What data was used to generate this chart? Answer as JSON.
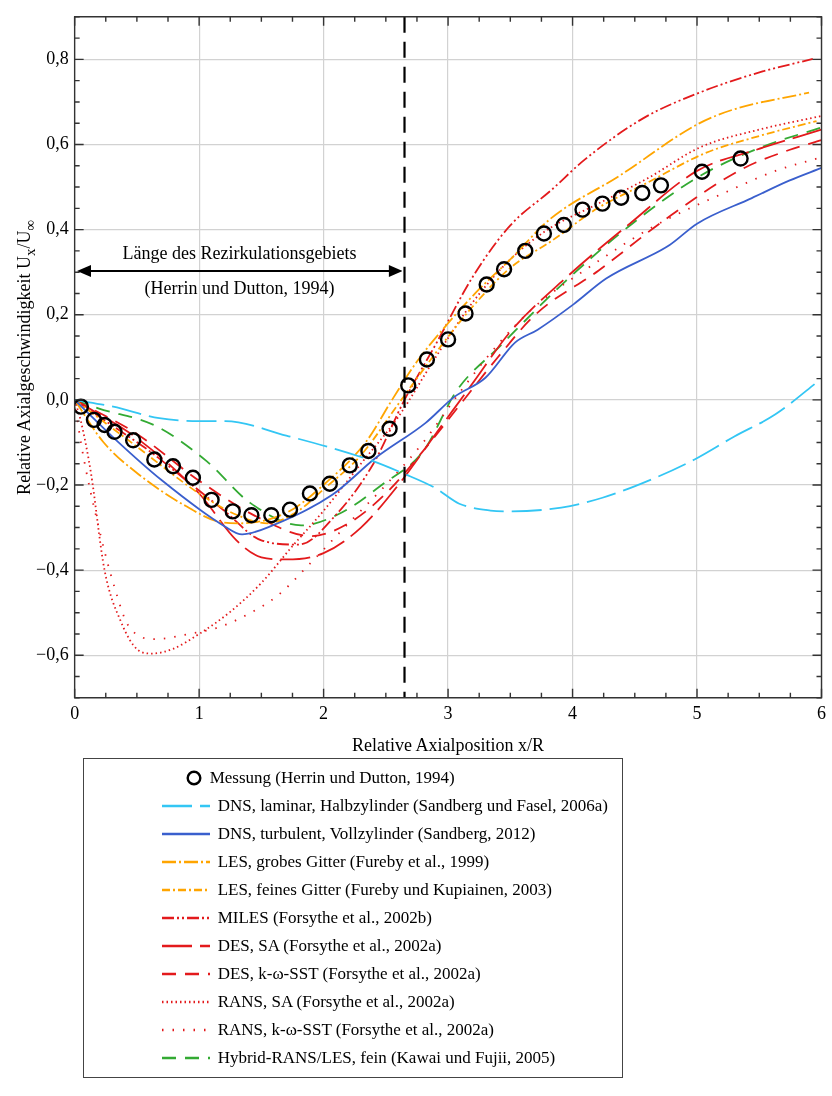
{
  "chart_data": {
    "type": "line",
    "xlabel": "Relative Axialposition x/R",
    "ylabel": "Relative Axialgeschwindigkeit U$_{x}$/U$_{∞}$",
    "xlim": [
      0,
      6
    ],
    "ylim": [
      -0.7,
      0.9
    ],
    "xticks": [
      0,
      {
        "value": 0.25,
        "label": null
      },
      {
        "value": 0.5,
        "label": null
      },
      {
        "value": 0.75,
        "label": null
      },
      1,
      {
        "value": 1.25,
        "label": null
      },
      {
        "value": 1.5,
        "label": null
      },
      {
        "value": 1.75,
        "label": null
      },
      2,
      {
        "value": 2.25,
        "label": null
      },
      {
        "value": 2.5,
        "label": null
      },
      {
        "value": 2.75,
        "label": null
      },
      3,
      {
        "value": 3.25,
        "label": null
      },
      {
        "value": 3.5,
        "label": null
      },
      {
        "value": 3.75,
        "label": null
      },
      4,
      {
        "value": 4.25,
        "label": null
      },
      {
        "value": 4.5,
        "label": null
      },
      {
        "value": 4.75,
        "label": null
      },
      5,
      {
        "value": 5.25,
        "label": null
      },
      {
        "value": 5.5,
        "label": null
      },
      {
        "value": 5.75,
        "label": null
      },
      6
    ],
    "yticks": [
      {
        "value": -0.7,
        "label": null
      },
      {
        "value": -0.65,
        "label": null
      },
      {
        "value": -0.6,
        "label": "−0,6"
      },
      {
        "value": -0.55,
        "label": null
      },
      {
        "value": -0.5,
        "label": null
      },
      {
        "value": -0.45,
        "label": null
      },
      {
        "value": -0.4,
        "label": "−0,4"
      },
      {
        "value": -0.35,
        "label": null
      },
      {
        "value": -0.3,
        "label": null
      },
      {
        "value": -0.25,
        "label": null
      },
      {
        "value": -0.2,
        "label": "−0,2"
      },
      {
        "value": -0.15,
        "label": null
      },
      {
        "value": -0.1,
        "label": null
      },
      {
        "value": -0.05,
        "label": null
      },
      {
        "value": 0,
        "label": "0,0"
      },
      {
        "value": 0.05,
        "label": null
      },
      {
        "value": 0.1,
        "label": null
      },
      {
        "value": 0.15,
        "label": null
      },
      {
        "value": 0.2,
        "label": "0,2"
      },
      {
        "value": 0.25,
        "label": null
      },
      {
        "value": 0.3,
        "label": null
      },
      {
        "value": 0.35,
        "label": null
      },
      {
        "value": 0.4,
        "label": "0,4"
      },
      {
        "value": 0.45,
        "label": null
      },
      {
        "value": 0.5,
        "label": null
      },
      {
        "value": 0.55,
        "label": null
      },
      {
        "value": 0.6,
        "label": "0,6"
      },
      {
        "value": 0.65,
        "label": null
      },
      {
        "value": 0.7,
        "label": null
      },
      {
        "value": 0.75,
        "label": null
      },
      {
        "value": 0.8,
        "label": "0,8"
      },
      {
        "value": 0.85,
        "label": null
      },
      {
        "value": 0.9,
        "label": null
      }
    ],
    "grid": true,
    "legend": "bottom",
    "ref_lines": [
      {
        "axis": "x",
        "value": 2.65,
        "label": null,
        "color": "#000000",
        "line_style": "dashed"
      }
    ],
    "annotations": [
      "Länge des Rezirkulationsgebiets",
      "(Herrin und Dutton, 1994)"
    ],
    "series": [
      {
        "name": "Messung (Herrin und Dutton, 1994)",
        "type": "scatter",
        "marker": "circle",
        "color": "#000000",
        "x": [
          0.05,
          0.155,
          0.24,
          0.32,
          0.47,
          0.64,
          0.79,
          0.95,
          1.1,
          1.27,
          1.42,
          1.58,
          1.73,
          1.89,
          2.05,
          2.21,
          2.36,
          2.53,
          2.68,
          2.83,
          3.0,
          3.14,
          3.31,
          3.45,
          3.62,
          3.77,
          3.93,
          4.08,
          4.24,
          4.39,
          4.56,
          4.71,
          5.04,
          5.35
        ],
        "values": [
          -0.016,
          -0.047,
          -0.059,
          -0.075,
          -0.095,
          -0.14,
          -0.156,
          -0.183,
          -0.235,
          -0.262,
          -0.271,
          -0.271,
          -0.258,
          -0.22,
          -0.197,
          -0.154,
          -0.12,
          -0.068,
          0.034,
          0.095,
          0.142,
          0.203,
          0.271,
          0.307,
          0.35,
          0.391,
          0.411,
          0.447,
          0.461,
          0.475,
          0.486,
          0.504,
          0.536,
          0.567
        ]
      },
      {
        "name": "DNS, laminar, Halbzylinder (Sandberg und Fasel, 2006a)",
        "color": "#33c6f4",
        "line_style": "long-dashed",
        "x": [
          0,
          0.31,
          0.68,
          1.0,
          1.21,
          1.7,
          2.36,
          2.65,
          2.89,
          3.09,
          3.34,
          3.5,
          3.91,
          4.24,
          4.65,
          4.98,
          5.3,
          5.63,
          6.0
        ],
        "values": [
          0,
          -0.016,
          -0.043,
          -0.05,
          -0.05,
          -0.084,
          -0.14,
          -0.174,
          -0.206,
          -0.244,
          -0.26,
          -0.262,
          -0.253,
          -0.23,
          -0.185,
          -0.14,
          -0.086,
          -0.034,
          0.05
        ]
      },
      {
        "name": "DNS, turbulent, Vollzylinder (Sandberg, 2012)",
        "color": "#3a5fcd",
        "line_style": "solid",
        "x": [
          0,
          0.32,
          0.7,
          1.21,
          1.345,
          1.59,
          2.07,
          2.42,
          2.82,
          3.05,
          3.3,
          3.54,
          3.72,
          4.01,
          4.27,
          4.78,
          5.0,
          5.44,
          5.74,
          6.0
        ],
        "values": [
          0,
          -0.091,
          -0.189,
          -0.298,
          -0.316,
          -0.295,
          -0.223,
          -0.136,
          -0.054,
          0.007,
          0.052,
          0.135,
          0.165,
          0.225,
          0.285,
          0.364,
          0.414,
          0.474,
          0.515,
          0.545
        ]
      },
      {
        "name": "LES, grobes Gitter (Fureby et al., 1999)",
        "color": "#ffa500",
        "line_style": "dash-dot",
        "x": [
          0,
          0.23,
          0.51,
          0.89,
          1.17,
          1.33,
          1.71,
          2.01,
          2.34,
          2.55,
          2.75,
          3.0,
          3.25,
          3.5,
          3.82,
          4.38,
          5.0,
          5.28,
          5.9
        ],
        "values": [
          0,
          -0.099,
          -0.174,
          -0.249,
          -0.287,
          -0.29,
          -0.264,
          -0.197,
          -0.099,
          0.0,
          0.09,
          0.18,
          0.26,
          0.33,
          0.425,
          0.527,
          0.647,
          0.681,
          0.722
        ]
      },
      {
        "name": "LES, feines Gitter (Fureby und Kupiainen, 2003)",
        "color": "#ffa500",
        "line_style": "short-dash-dot",
        "x": [
          0,
          0.5,
          1.0,
          1.3,
          1.55,
          1.8,
          2.0,
          2.3,
          2.6,
          2.9,
          3.2,
          3.5,
          3.83,
          4.2,
          4.6,
          5.06,
          5.5,
          5.96
        ],
        "values": [
          0,
          -0.11,
          -0.22,
          -0.27,
          -0.29,
          -0.26,
          -0.21,
          -0.13,
          -0.01,
          0.11,
          0.22,
          0.31,
          0.373,
          0.45,
          0.51,
          0.579,
          0.62,
          0.655
        ]
      },
      {
        "name": "MILES (Forsythe et al., 2002b)",
        "color": "#e31a1c",
        "line_style": "dash-dot-dot",
        "x": [
          0,
          0.3,
          0.6,
          0.9,
          1.2,
          1.5,
          1.8,
          2.1,
          2.4,
          2.65,
          2.9,
          3.2,
          3.5,
          3.83,
          4.1,
          4.57,
          5.03,
          5.52,
          5.93
        ],
        "values": [
          0,
          -0.06,
          -0.12,
          -0.19,
          -0.26,
          -0.33,
          -0.34,
          -0.27,
          -0.15,
          0.0,
          0.13,
          0.29,
          0.41,
          0.493,
          0.565,
          0.662,
          0.723,
          0.771,
          0.801
        ]
      },
      {
        "name": "DES, SA (Forsythe et al., 2002a)",
        "color": "#e31a1c",
        "line_style": "long-dashed",
        "x": [
          0,
          0.5,
          1.0,
          1.3,
          1.5,
          1.7,
          2.0,
          2.3,
          2.6,
          2.9,
          3.2,
          3.5,
          3.94,
          4.46,
          5.0,
          5.47,
          6.0
        ],
        "values": [
          0,
          -0.09,
          -0.22,
          -0.33,
          -0.37,
          -0.375,
          -0.36,
          -0.3,
          -0.2,
          -0.08,
          0.04,
          0.16,
          0.285,
          0.414,
          0.538,
          0.587,
          0.635
        ]
      },
      {
        "name": "DES, k-ω-SST (Forsythe et al., 2002a)",
        "color": "#e31a1c",
        "line_style": "dashed",
        "x": [
          0,
          0.5,
          1.0,
          1.5,
          1.9,
          2.2,
          2.5,
          2.8,
          3.1,
          3.4,
          3.7,
          4.21,
          4.75,
          5.36,
          5.74,
          6.0
        ],
        "values": [
          0,
          -0.08,
          -0.19,
          -0.28,
          -0.32,
          -0.29,
          -0.22,
          -0.12,
          -0.01,
          0.1,
          0.2,
          0.304,
          0.425,
          0.542,
          0.587,
          0.61
        ]
      },
      {
        "name": "RANS, SA (Forsythe et al., 2002a)",
        "color": "#e31a1c",
        "line_style": "dotted",
        "x": [
          0,
          0.05,
          0.13,
          0.24,
          0.37,
          0.51,
          0.62,
          0.79,
          1.0,
          1.25,
          1.5,
          1.74,
          1.99,
          2.3,
          2.6,
          2.9,
          3.2,
          3.5,
          3.8,
          4.2,
          4.6,
          5.03,
          5.5,
          6.0
        ],
        "values": [
          0,
          -0.05,
          -0.17,
          -0.4,
          -0.52,
          -0.588,
          -0.596,
          -0.585,
          -0.55,
          -0.498,
          -0.43,
          -0.347,
          -0.264,
          -0.15,
          -0.04,
          0.1,
          0.23,
          0.33,
          0.4,
          0.46,
          0.52,
          0.594,
          0.635,
          0.667
        ]
      },
      {
        "name": "RANS, k-ω-SST (Forsythe et al., 2002a)",
        "color": "#e31a1c",
        "line_style": "loosely-dotted",
        "x": [
          0,
          0.05,
          0.21,
          0.32,
          0.43,
          0.65,
          0.92,
          1.14,
          1.33,
          1.63,
          1.89,
          2.2,
          2.5,
          2.8,
          3.1,
          3.4,
          3.7,
          4.1,
          4.65,
          5.3,
          5.63,
          6.0
        ],
        "values": [
          0,
          -0.1,
          -0.32,
          -0.44,
          -0.53,
          -0.562,
          -0.55,
          -0.536,
          -0.513,
          -0.46,
          -0.385,
          -0.29,
          -0.2,
          -0.1,
          0.02,
          0.13,
          0.22,
          0.305,
          0.407,
          0.497,
          0.538,
          0.57
        ]
      },
      {
        "name": "Hybrid-RANS/LES, fein (Kawai und Fujii, 2005)",
        "color": "#33aa33",
        "line_style": "dashed",
        "x": [
          0,
          0.19,
          0.65,
          1.06,
          1.41,
          1.82,
          2.15,
          2.48,
          2.8,
          3.07,
          3.42,
          3.94,
          4.51,
          5.03,
          5.52,
          6.0
        ],
        "values": [
          0,
          -0.02,
          -0.061,
          -0.144,
          -0.242,
          -0.295,
          -0.264,
          -0.197,
          -0.121,
          0.022,
          0.127,
          0.278,
          0.421,
          0.527,
          0.594,
          0.64
        ]
      }
    ]
  }
}
